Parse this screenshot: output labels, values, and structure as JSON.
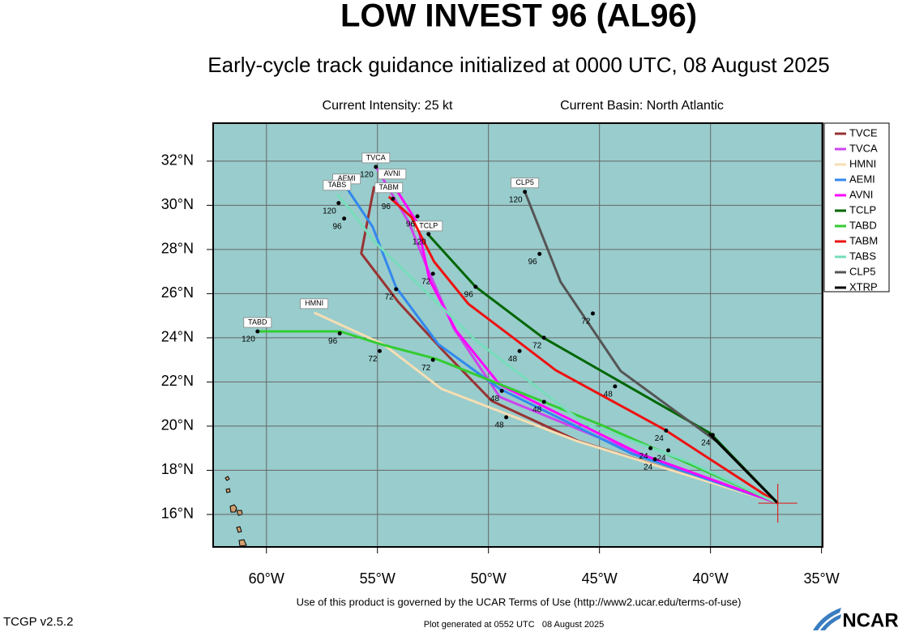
{
  "chart_data": {
    "type": "track_map",
    "title": "LOW INVEST 96 (AL96)",
    "subtitle": "Early-cycle track guidance initialized at 0000 UTC, 08 August 2025",
    "intensity": "Current Intensity: 25 kt",
    "basin": "Current Basin: North Atlantic",
    "footer": "Use of this product is governed by the UCAR Terms of Use (http://www2.ucar.edu/terms-of-use)",
    "version": "TCGP v2.5.2",
    "generated": "Plot generated at 0552 UTC   08 August 2025",
    "logo": "NCAR",
    "xlim": [
      -62.4,
      -34.95
    ],
    "ylim": [
      14.53,
      33.72
    ],
    "xticks": [
      {
        "value": -60,
        "label": "60°W"
      },
      {
        "value": -55,
        "label": "55°W"
      },
      {
        "value": -50,
        "label": "50°W"
      },
      {
        "value": -45,
        "label": "45°W"
      },
      {
        "value": -40,
        "label": "40°W"
      },
      {
        "value": -35,
        "label": "35°W"
      }
    ],
    "yticks": [
      {
        "value": 16,
        "label": "16°N"
      },
      {
        "value": 18,
        "label": "18°N"
      },
      {
        "value": 20,
        "label": "20°N"
      },
      {
        "value": 22,
        "label": "22°N"
      },
      {
        "value": 24,
        "label": "24°N"
      },
      {
        "value": 26,
        "label": "26°N"
      },
      {
        "value": 28,
        "label": "28°N"
      },
      {
        "value": 30,
        "label": "30°N"
      },
      {
        "value": 32,
        "label": "32°N"
      }
    ],
    "grid": true,
    "start": {
      "x": -36.97,
      "y": 16.51
    },
    "series": [
      {
        "name": "TVCE",
        "color": "#993333",
        "end_box": false,
        "x": [
          -36.97,
          -45.99,
          -49.85,
          -52.04,
          -54.05,
          -55.73,
          -55.15
        ],
        "y": [
          16.51,
          19.34,
          21.14,
          23.41,
          25.61,
          27.82,
          30.86
        ]
      },
      {
        "name": "TVCA",
        "color": "#cc44ee",
        "end_box": true,
        "x": [
          -36.97,
          -42.81,
          -49.49,
          -51.57,
          -52.77,
          -53.58,
          -55.07
        ],
        "y": [
          16.51,
          18.57,
          21.32,
          24.44,
          27.19,
          29.21,
          31.74
        ]
      },
      {
        "name": "HMNI",
        "color": "#f5deb3",
        "end_box": true,
        "x": [
          -36.97,
          -46.06,
          -52.12,
          -54.74,
          -57.85
        ],
        "y": [
          16.51,
          19.34,
          21.69,
          23.71,
          25.14
        ]
      },
      {
        "name": "AEMI",
        "color": "#3388ee",
        "end_box": true,
        "x": [
          -36.97,
          -43.54,
          -49.49,
          -52.26,
          -54.16,
          -55.22,
          -56.39
        ],
        "y": [
          16.51,
          18.75,
          21.69,
          23.71,
          26.28,
          29.03,
          30.79
        ]
      },
      {
        "name": "AVNI",
        "color": "#ff00ff",
        "end_box": true,
        "x": [
          -36.97,
          -43.18,
          -49.49,
          -51.46,
          -52.66,
          -53.21,
          -54.34
        ],
        "y": [
          16.51,
          18.75,
          21.87,
          24.33,
          26.64,
          29.21,
          31.01
        ]
      },
      {
        "name": "TCLP",
        "color": "#006600",
        "end_box": true,
        "x": [
          -36.97,
          -40.0,
          -47.59,
          -50.58,
          -52.7
        ],
        "y": [
          16.51,
          19.67,
          24.04,
          26.31,
          28.66
        ]
      },
      {
        "name": "TABD",
        "color": "#33cc33",
        "end_box": true,
        "x": [
          -36.97,
          -44.89,
          -47.41,
          -52.37,
          -54.85,
          -56.68,
          -60.4
        ],
        "y": [
          16.51,
          20.04,
          21.06,
          23.05,
          23.71,
          24.29,
          24.29
        ]
      },
      {
        "name": "TABM",
        "color": "#ee1111",
        "end_box": true,
        "x": [
          -36.97,
          -42.08,
          -46.97,
          -48.36,
          -50.91,
          -52.45,
          -53.47,
          -54.49
        ],
        "y": [
          16.51,
          19.85,
          22.53,
          23.6,
          25.54,
          27.45,
          29.47,
          30.39
        ]
      },
      {
        "name": "TABS",
        "color": "#77ddbb",
        "end_box": true,
        "x": [
          -36.97,
          -40.99,
          -45.73,
          -50.58,
          -55.15,
          -56.31,
          -56.82
        ],
        "y": [
          16.51,
          18.39,
          20.15,
          23.89,
          28.37,
          29.91,
          30.5
        ]
      },
      {
        "name": "CLP5",
        "color": "#555555",
        "end_box": true,
        "x": [
          -36.97,
          -39.71,
          -44.05,
          -46.75,
          -48.36
        ],
        "y": [
          16.51,
          19.3,
          22.5,
          26.53,
          30.61
        ]
      },
      {
        "name": "XTRP",
        "color": "#000000",
        "end_box": false,
        "x": [
          -36.97,
          -40.07
        ],
        "y": [
          16.51,
          19.67
        ]
      }
    ],
    "hour_labels": [
      {
        "hour": 120,
        "x": -55.07,
        "y": 31.74
      },
      {
        "hour": 120,
        "x": -56.75,
        "y": 30.1
      },
      {
        "hour": 96,
        "x": -56.5,
        "y": 29.4
      },
      {
        "hour": 96,
        "x": -54.3,
        "y": 30.3
      },
      {
        "hour": 96,
        "x": -53.2,
        "y": 29.5
      },
      {
        "hour": 120,
        "x": -52.7,
        "y": 28.7
      },
      {
        "hour": 96,
        "x": -50.58,
        "y": 26.31
      },
      {
        "hour": 120,
        "x": -48.36,
        "y": 30.61
      },
      {
        "hour": 96,
        "x": -47.7,
        "y": 27.8
      },
      {
        "hour": 72,
        "x": -45.3,
        "y": 25.1
      },
      {
        "hour": 72,
        "x": -54.16,
        "y": 26.2
      },
      {
        "hour": 72,
        "x": -52.5,
        "y": 26.9
      },
      {
        "hour": 72,
        "x": -47.5,
        "y": 24.0
      },
      {
        "hour": 48,
        "x": -48.6,
        "y": 23.4
      },
      {
        "hour": 48,
        "x": -44.3,
        "y": 21.8
      },
      {
        "hour": 48,
        "x": -49.2,
        "y": 20.4
      },
      {
        "hour": 48,
        "x": -49.4,
        "y": 21.6
      },
      {
        "hour": 96,
        "x": -56.7,
        "y": 24.2
      },
      {
        "hour": 120,
        "x": -60.4,
        "y": 24.29
      },
      {
        "hour": 72,
        "x": -54.9,
        "y": 23.4
      },
      {
        "hour": 72,
        "x": -52.5,
        "y": 23.0
      },
      {
        "hour": 48,
        "x": -47.5,
        "y": 21.1
      },
      {
        "hour": 24,
        "x": -42.0,
        "y": 19.8
      },
      {
        "hour": 24,
        "x": -42.7,
        "y": 19.0
      },
      {
        "hour": 24,
        "x": -41.9,
        "y": 18.9
      },
      {
        "hour": 24,
        "x": -42.5,
        "y": 18.5
      },
      {
        "hour": 24,
        "x": -39.9,
        "y": 19.6
      }
    ]
  }
}
